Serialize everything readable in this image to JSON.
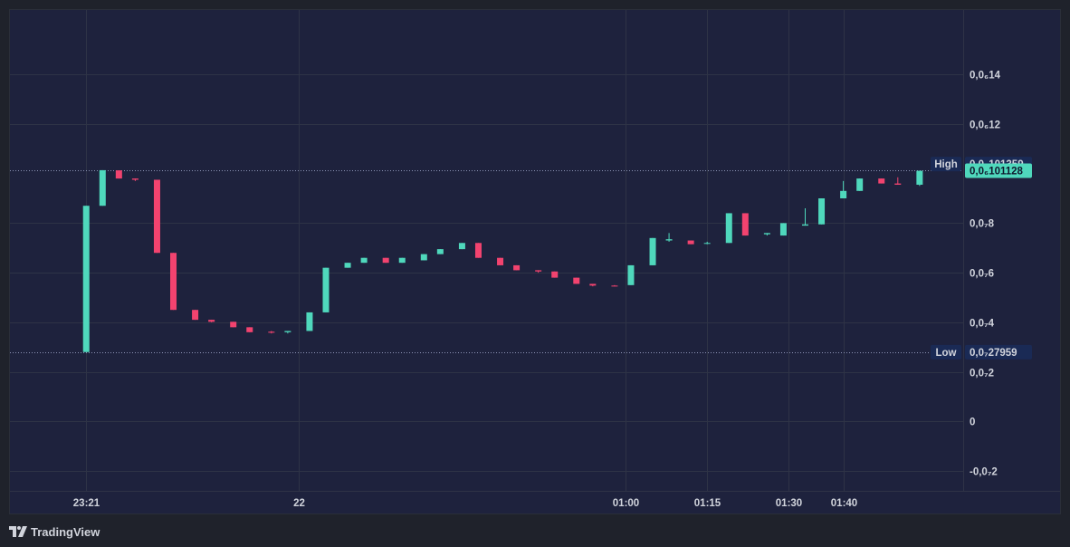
{
  "brand": {
    "name": "TradingView",
    "icon": "tradingview-logo-icon"
  },
  "colors": {
    "background": "#1f222b",
    "pane": "#1e223d",
    "grid": "#2e3346",
    "up": "#4fd8bc",
    "down": "#f2436f",
    "text": "#d1d4dc",
    "label_bg": "#1a2a55",
    "last_price_bg": "#4fd8bc"
  },
  "chart_data": {
    "type": "candlestick",
    "y_axis": {
      "range": [
        -2.8e-08,
        1.66e-07
      ],
      "ticks": [
        {
          "label": "0,0₆14",
          "value": 1.4e-07
        },
        {
          "label": "0,0₆12",
          "value": 1.2e-07
        },
        {
          "label": "0,0₇8",
          "value": 8e-08
        },
        {
          "label": "0,0₇6",
          "value": 6e-08
        },
        {
          "label": "0,0₇4",
          "value": 4e-08
        },
        {
          "label": "0,0₇2",
          "value": 2e-08
        },
        {
          "label": "0",
          "value": 0
        },
        {
          "label": "-0,0₇2",
          "value": -2e-08
        }
      ]
    },
    "x_axis": {
      "range_minutes": [
        -53,
        122
      ],
      "ticks": [
        {
          "label": "23:21",
          "minute": -39
        },
        {
          "label": "22",
          "minute": 0
        },
        {
          "label": "01:00",
          "minute": 60
        },
        {
          "label": "01:15",
          "minute": 75
        },
        {
          "label": "01:30",
          "minute": 90
        },
        {
          "label": "01:40",
          "minute": 100
        }
      ]
    },
    "grid": true,
    "high": {
      "label": "High",
      "value_text": "0,0₆101359",
      "value": 1.01359e-07
    },
    "low": {
      "label": "Low",
      "value_text": "0,0₇27959",
      "value": 2.7959e-08
    },
    "last_price": {
      "value_text": "0,0₆101128",
      "value": 1.01128e-07
    },
    "candles": [
      {
        "t": -39,
        "o": 2.8e-08,
        "h": 8.7e-08,
        "l": 2.8e-08,
        "c": 8.7e-08
      },
      {
        "t": -36,
        "o": 8.7e-08,
        "h": 1.0136e-07,
        "l": 8.7e-08,
        "c": 1.0136e-07
      },
      {
        "t": -33,
        "o": 1.013e-07,
        "h": 1.013e-07,
        "l": 9.8e-08,
        "c": 9.8e-08
      },
      {
        "t": -30,
        "o": 9.8e-08,
        "h": 9.8e-08,
        "l": 9.7e-08,
        "c": 9.75e-08
      },
      {
        "t": -26,
        "o": 9.75e-08,
        "h": 9.75e-08,
        "l": 6.8e-08,
        "c": 6.8e-08
      },
      {
        "t": -23,
        "o": 6.8e-08,
        "h": 6.8e-08,
        "l": 4.5e-08,
        "c": 4.5e-08
      },
      {
        "t": -19,
        "o": 4.5e-08,
        "h": 4.5e-08,
        "l": 4.1e-08,
        "c": 4.1e-08
      },
      {
        "t": -16,
        "o": 4.1e-08,
        "h": 4.1e-08,
        "l": 4e-08,
        "c": 4.02e-08
      },
      {
        "t": -12,
        "o": 4.02e-08,
        "h": 4.02e-08,
        "l": 3.8e-08,
        "c": 3.8e-08
      },
      {
        "t": -9,
        "o": 3.8e-08,
        "h": 3.8e-08,
        "l": 3.6e-08,
        "c": 3.6e-08
      },
      {
        "t": -5,
        "o": 3.62e-08,
        "h": 3.65e-08,
        "l": 3.55e-08,
        "c": 3.58e-08
      },
      {
        "t": -2,
        "o": 3.6e-08,
        "h": 3.65e-08,
        "l": 3.55e-08,
        "c": 3.65e-08
      },
      {
        "t": 2,
        "o": 3.65e-08,
        "h": 4.4e-08,
        "l": 3.65e-08,
        "c": 4.4e-08
      },
      {
        "t": 5,
        "o": 4.4e-08,
        "h": 6.2e-08,
        "l": 4.4e-08,
        "c": 6.2e-08
      },
      {
        "t": 9,
        "o": 6.2e-08,
        "h": 6.4e-08,
        "l": 6.2e-08,
        "c": 6.4e-08
      },
      {
        "t": 12,
        "o": 6.4e-08,
        "h": 6.6e-08,
        "l": 6.4e-08,
        "c": 6.6e-08
      },
      {
        "t": 16,
        "o": 6.6e-08,
        "h": 6.6e-08,
        "l": 6.4e-08,
        "c": 6.4e-08
      },
      {
        "t": 19,
        "o": 6.4e-08,
        "h": 6.6e-08,
        "l": 6.4e-08,
        "c": 6.6e-08
      },
      {
        "t": 23,
        "o": 6.5e-08,
        "h": 6.75e-08,
        "l": 6.5e-08,
        "c": 6.75e-08
      },
      {
        "t": 26,
        "o": 6.75e-08,
        "h": 6.95e-08,
        "l": 6.75e-08,
        "c": 6.95e-08
      },
      {
        "t": 30,
        "o": 6.95e-08,
        "h": 7.2e-08,
        "l": 6.95e-08,
        "c": 7.2e-08
      },
      {
        "t": 33,
        "o": 7.2e-08,
        "h": 7.2e-08,
        "l": 6.6e-08,
        "c": 6.6e-08
      },
      {
        "t": 37,
        "o": 6.6e-08,
        "h": 6.6e-08,
        "l": 6.3e-08,
        "c": 6.3e-08
      },
      {
        "t": 40,
        "o": 6.3e-08,
        "h": 6.3e-08,
        "l": 6.1e-08,
        "c": 6.1e-08
      },
      {
        "t": 44,
        "o": 6.1e-08,
        "h": 6.1e-08,
        "l": 6e-08,
        "c": 6.05e-08
      },
      {
        "t": 47,
        "o": 6.05e-08,
        "h": 6.05e-08,
        "l": 5.8e-08,
        "c": 5.8e-08
      },
      {
        "t": 51,
        "o": 5.8e-08,
        "h": 5.8e-08,
        "l": 5.55e-08,
        "c": 5.55e-08
      },
      {
        "t": 54,
        "o": 5.55e-08,
        "h": 5.55e-08,
        "l": 5.45e-08,
        "c": 5.48e-08
      },
      {
        "t": 58,
        "o": 5.48e-08,
        "h": 5.5e-08,
        "l": 5.45e-08,
        "c": 5.45e-08
      },
      {
        "t": 61,
        "o": 5.5e-08,
        "h": 6.3e-08,
        "l": 5.5e-08,
        "c": 6.3e-08
      },
      {
        "t": 65,
        "o": 6.3e-08,
        "h": 7.4e-08,
        "l": 6.3e-08,
        "c": 7.4e-08
      },
      {
        "t": 68,
        "o": 7.3e-08,
        "h": 7.6e-08,
        "l": 7.25e-08,
        "c": 7.35e-08
      },
      {
        "t": 72,
        "o": 7.3e-08,
        "h": 7.3e-08,
        "l": 7.15e-08,
        "c": 7.15e-08
      },
      {
        "t": 75,
        "o": 7.2e-08,
        "h": 7.25e-08,
        "l": 7.15e-08,
        "c": 7.2e-08
      },
      {
        "t": 79,
        "o": 7.2e-08,
        "h": 8.4e-08,
        "l": 7.2e-08,
        "c": 8.4e-08
      },
      {
        "t": 82,
        "o": 8.4e-08,
        "h": 8.4e-08,
        "l": 7.5e-08,
        "c": 7.5e-08
      },
      {
        "t": 86,
        "o": 7.55e-08,
        "h": 7.6e-08,
        "l": 7.5e-08,
        "c": 7.6e-08
      },
      {
        "t": 89,
        "o": 7.5e-08,
        "h": 8e-08,
        "l": 7.5e-08,
        "c": 8e-08
      },
      {
        "t": 93,
        "o": 7.9e-08,
        "h": 8.6e-08,
        "l": 7.9e-08,
        "c": 7.95e-08
      },
      {
        "t": 96,
        "o": 7.95e-08,
        "h": 9e-08,
        "l": 7.95e-08,
        "c": 9e-08
      },
      {
        "t": 100,
        "o": 9e-08,
        "h": 9.7e-08,
        "l": 9e-08,
        "c": 9.3e-08
      },
      {
        "t": 103,
        "o": 9.3e-08,
        "h": 9.8e-08,
        "l": 9.3e-08,
        "c": 9.8e-08
      },
      {
        "t": 107,
        "o": 9.8e-08,
        "h": 9.8e-08,
        "l": 9.6e-08,
        "c": 9.6e-08
      },
      {
        "t": 110,
        "o": 9.6e-08,
        "h": 9.85e-08,
        "l": 9.55e-08,
        "c": 9.55e-08
      },
      {
        "t": 114,
        "o": 9.55e-08,
        "h": 1.0113e-07,
        "l": 9.5e-08,
        "c": 1.0113e-07
      }
    ]
  }
}
